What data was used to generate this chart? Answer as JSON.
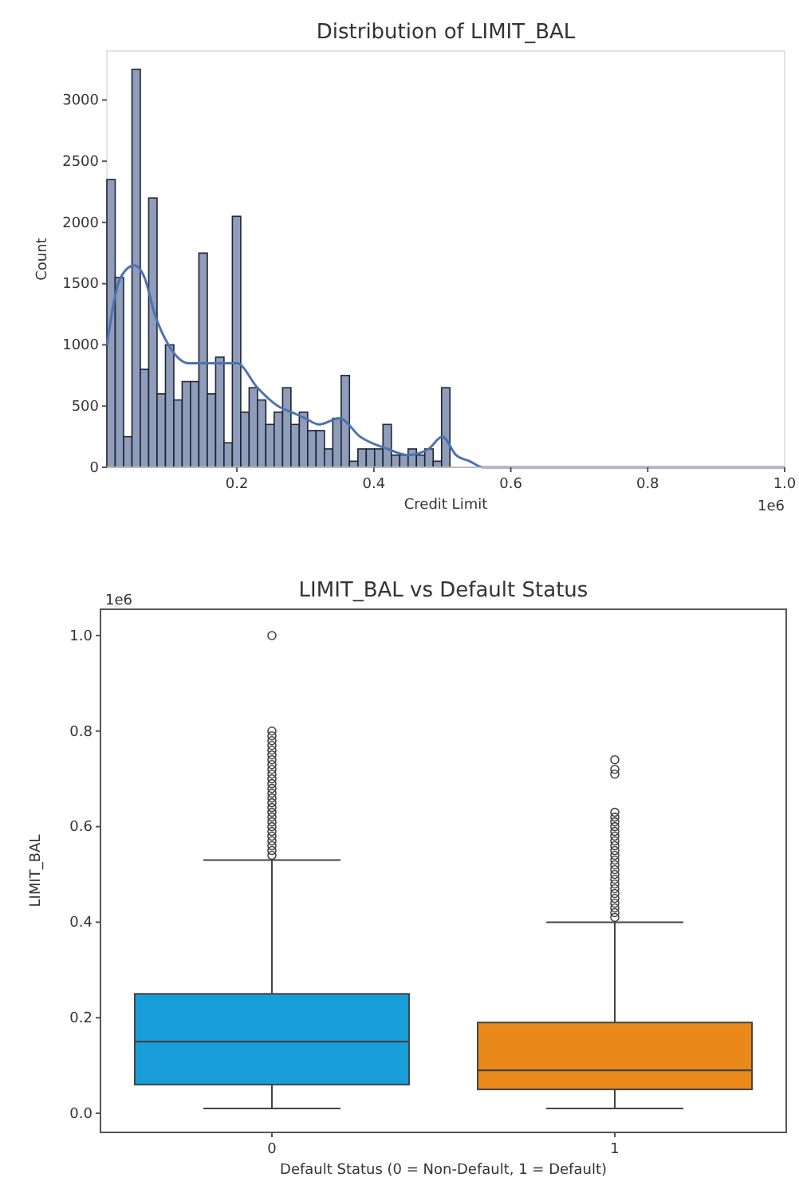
{
  "chart_data": [
    {
      "type": "histogram",
      "title": "Distribution of LIMIT_BAL",
      "xlabel": "Credit Limit",
      "ylabel": "Count",
      "annotations": [
        "1e6"
      ],
      "xlim": [
        0.01,
        1.0
      ],
      "xticks": [
        {
          "value": 0.2,
          "label": "0.2"
        },
        {
          "value": 0.4,
          "label": "0.4"
        },
        {
          "value": 0.6,
          "label": "0.6"
        },
        {
          "value": 0.8,
          "label": "0.8"
        },
        {
          "value": 1.0,
          "label": "1.0"
        }
      ],
      "ylim": [
        0,
        3400
      ],
      "yticks": [
        0,
        500,
        1000,
        1500,
        2000,
        2500,
        3000
      ],
      "grid": false,
      "series": [
        {
          "type": "histogram",
          "color": "#8f9dbb",
          "bins": [
            0.01,
            0.0222,
            0.0344,
            0.0467,
            0.0589,
            0.0711,
            0.0833,
            0.0956,
            0.1078,
            0.12,
            0.1322,
            0.1444,
            0.1567,
            0.1689,
            0.1811,
            0.1933,
            0.2056,
            0.2178,
            0.23,
            0.2422,
            0.2544,
            0.2667,
            0.2789,
            0.2911,
            0.3033,
            0.3156,
            0.3278,
            0.34,
            0.3522,
            0.3644,
            0.3767,
            0.3889,
            0.4011,
            0.4133,
            0.4256,
            0.4378,
            0.45,
            0.4622,
            0.4744,
            0.4867,
            0.4989,
            0.5111,
            0.5233,
            0.5356,
            0.5478,
            0.56,
            0.5722,
            0.5844,
            0.5967,
            0.6089,
            0.6211,
            0.6333,
            0.6456,
            0.6578,
            0.67,
            0.6822,
            0.6944,
            0.7067,
            0.7189,
            0.7311,
            0.7433,
            0.7556,
            0.7678,
            0.78,
            0.7922,
            0.8044,
            0.8167,
            0.8289,
            0.8411,
            0.8533,
            0.8656,
            0.8778,
            0.89,
            0.9022,
            0.9144,
            0.9267,
            0.9389,
            0.9511,
            0.9633,
            0.9756,
            0.9878,
            1.0
          ],
          "values": [
            2350,
            1550,
            250,
            3250,
            800,
            2200,
            600,
            1000,
            550,
            700,
            700,
            1750,
            600,
            900,
            200,
            2050,
            450,
            650,
            550,
            350,
            450,
            650,
            350,
            450,
            300,
            300,
            150,
            400,
            750,
            50,
            150,
            150,
            150,
            350,
            100,
            100,
            150,
            100,
            150,
            50,
            650,
            0,
            0,
            0,
            0,
            0,
            0,
            0,
            0,
            0,
            0,
            0,
            0,
            0,
            0,
            0,
            0,
            0,
            0,
            0,
            0,
            0,
            0,
            0,
            0,
            0,
            0,
            0,
            0,
            0,
            0,
            0,
            0,
            0,
            0,
            0,
            0,
            0,
            0,
            0,
            0
          ]
        },
        {
          "type": "line",
          "color": "#4c72b0",
          "x": [
            0.01,
            0.03,
            0.05,
            0.065,
            0.08,
            0.1,
            0.13,
            0.15,
            0.175,
            0.2,
            0.23,
            0.26,
            0.28,
            0.3,
            0.32,
            0.35,
            0.38,
            0.42,
            0.45,
            0.48,
            0.5,
            0.52,
            0.54,
            0.56,
            0.6,
            0.7,
            0.8,
            0.9,
            1.0
          ],
          "values": [
            1000,
            1550,
            1650,
            1550,
            1250,
            1000,
            850,
            850,
            850,
            850,
            650,
            500,
            450,
            400,
            350,
            400,
            250,
            150,
            100,
            150,
            250,
            100,
            50,
            0,
            0,
            0,
            0,
            0,
            0
          ]
        }
      ]
    },
    {
      "type": "box",
      "title": "LIMIT_BAL vs Default Status",
      "xlabel": "Default Status (0 = Non-Default, 1 = Default)",
      "ylabel": "LIMIT_BAL",
      "annotations": [
        "1e6"
      ],
      "categories": [
        "0",
        "1"
      ],
      "colors": [
        "#1a9ed9",
        "#e8891a"
      ],
      "marker": "circle",
      "ylim": [
        -0.04,
        1.055
      ],
      "yticks": [
        {
          "value": 0,
          "label": "0.0"
        },
        {
          "value": 0.2,
          "label": "0.2"
        },
        {
          "value": 0.4,
          "label": "0.4"
        },
        {
          "value": 0.6,
          "label": "0.6"
        },
        {
          "value": 0.8,
          "label": "0.8"
        },
        {
          "value": 1.0,
          "label": "1.0"
        }
      ],
      "grid": false,
      "boxes": [
        {
          "low": 0.01,
          "q1": 0.06,
          "median": 0.15,
          "q3": 0.25,
          "high": 0.53,
          "outliers": [
            0.54,
            0.55,
            0.56,
            0.57,
            0.58,
            0.59,
            0.6,
            0.61,
            0.62,
            0.63,
            0.64,
            0.65,
            0.66,
            0.67,
            0.68,
            0.69,
            0.7,
            0.71,
            0.72,
            0.73,
            0.74,
            0.75,
            0.76,
            0.77,
            0.78,
            0.79,
            0.8,
            1.0
          ]
        },
        {
          "low": 0.01,
          "q1": 0.05,
          "median": 0.09,
          "q3": 0.19,
          "high": 0.4,
          "outliers": [
            0.41,
            0.42,
            0.43,
            0.44,
            0.45,
            0.46,
            0.47,
            0.48,
            0.49,
            0.5,
            0.51,
            0.52,
            0.53,
            0.54,
            0.55,
            0.56,
            0.57,
            0.58,
            0.59,
            0.6,
            0.61,
            0.62,
            0.63,
            0.71,
            0.72,
            0.74
          ]
        }
      ]
    }
  ]
}
